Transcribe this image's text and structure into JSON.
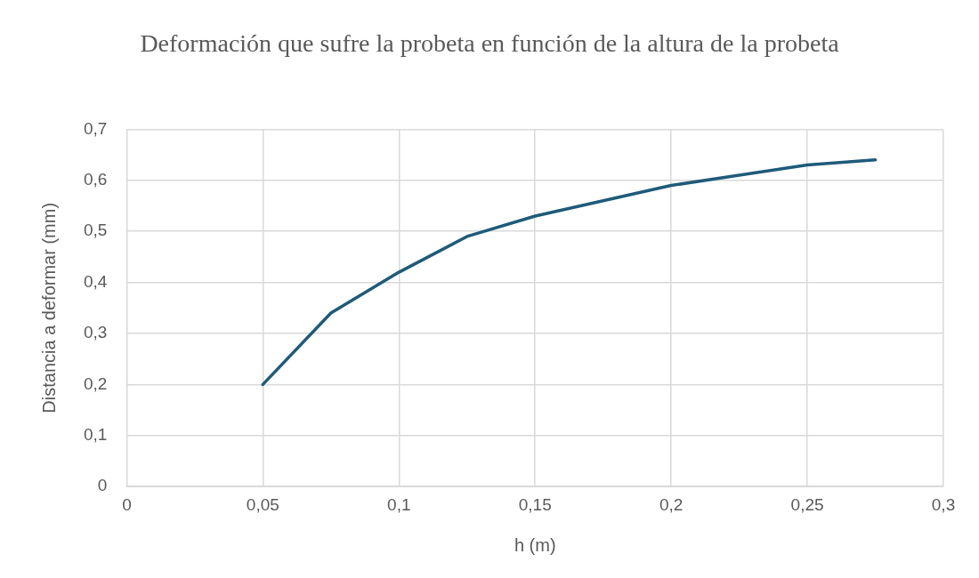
{
  "chart_data": {
    "type": "line",
    "title": "Deformación que sufre la probeta en función de la altura de la probeta",
    "xlabel": "h (m)",
    "ylabel": "Distancia a deformar (mm)",
    "x": [
      0.05,
      0.075,
      0.1,
      0.125,
      0.15,
      0.175,
      0.2,
      0.225,
      0.25,
      0.275
    ],
    "series": [
      {
        "color": "#1e5b7a",
        "values": [
          0.2,
          0.34,
          0.42,
          0.49,
          0.53,
          0.56,
          0.59,
          0.61,
          0.63,
          0.64
        ]
      }
    ],
    "xlim": [
      0,
      0.3
    ],
    "xticks": [
      0,
      {
        "value": 0.05,
        "label": "0,05"
      },
      {
        "value": 0.1,
        "label": "0,1"
      },
      {
        "value": 0.15,
        "label": "0,15"
      },
      {
        "value": 0.2,
        "label": "0,2"
      },
      {
        "value": 0.25,
        "label": "0,25"
      },
      {
        "value": 0.3,
        "label": "0,3"
      }
    ],
    "ylim": [
      0,
      0.7
    ],
    "yticks": [
      0,
      {
        "value": 0.1,
        "label": "0,1"
      },
      {
        "value": 0.2,
        "label": "0,2"
      },
      {
        "value": 0.3,
        "label": "0,3"
      },
      {
        "value": 0.4,
        "label": "0,4"
      },
      {
        "value": 0.5,
        "label": "0,5"
      },
      {
        "value": 0.6,
        "label": "0,6"
      },
      {
        "value": 0.7,
        "label": "0,7"
      }
    ],
    "grid": true,
    "legend": false,
    "marker": "none",
    "line_style": "solid"
  }
}
